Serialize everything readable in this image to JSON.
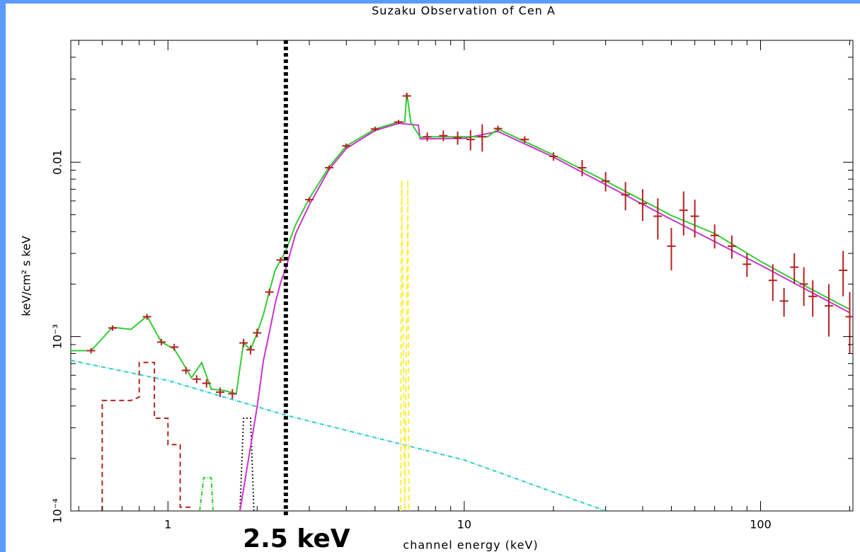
{
  "chart_data": {
    "type": "spectrum",
    "title": "Suzaku Observation of Cen A",
    "xlabel": "channel energy (keV)",
    "ylabel": "keV/cm² s keV",
    "xscale": "log",
    "yscale": "log",
    "xlim": [
      0.47,
      205
    ],
    "ylim": [
      0.0001,
      0.05
    ],
    "xticks": [
      1,
      10,
      100
    ],
    "xminorticks": [
      0.5,
      0.6,
      0.7,
      0.8,
      0.9,
      2,
      3,
      4,
      5,
      6,
      7,
      8,
      9,
      20,
      30,
      40,
      50,
      60,
      70,
      80,
      90,
      200
    ],
    "yticks": [
      {
        "value": 0.0001,
        "label": "10⁻⁴"
      },
      {
        "value": 0.001,
        "label": "10⁻³"
      },
      0.01
    ],
    "yminorticks": [
      0.0002,
      0.0003,
      0.0004,
      0.0005,
      0.0006,
      0.0007,
      0.0008,
      0.0009,
      0.002,
      0.003,
      0.004,
      0.005,
      0.006,
      0.007,
      0.008,
      0.009,
      0.02,
      0.03,
      0.04,
      0.05
    ],
    "series": [
      {
        "kind": "line",
        "color": "#33cccc",
        "dash": "6 2 1 2",
        "x": [
          0.47,
          1,
          2.5,
          10,
          30
        ],
        "values": [
          0.00073,
          0.00056,
          0.000354,
          0.000196,
          0.0001
        ]
      },
      {
        "kind": "line",
        "color": "#b22222",
        "dash": "7 5",
        "x": [
          0.6,
          0.6,
          0.75,
          0.8,
          0.8,
          0.9,
          0.9,
          1.0,
          1.0,
          1.1,
          1.1,
          1.2
        ],
        "values": [
          0.0001,
          0.00043,
          0.00043,
          0.00045,
          0.00071,
          0.00071,
          0.00034,
          0.00034,
          0.00024,
          0.00024,
          0.000105,
          0.000105
        ]
      },
      {
        "kind": "line",
        "color": "#222222",
        "dash": "2 3",
        "x": [
          1.75,
          1.8,
          1.9,
          1.95
        ],
        "values": [
          0.0001,
          0.00034,
          0.00034,
          0.0001
        ]
      },
      {
        "kind": "line",
        "color": "#33cc33",
        "dash": "6 2 1 2",
        "x": [
          1.28,
          1.32,
          1.4,
          1.42
        ],
        "values": [
          0.0001,
          0.000155,
          0.000155,
          0.0001
        ]
      },
      {
        "kind": "line",
        "color": "#ffee44",
        "dash": "8 4",
        "x": [
          6.1,
          6.15,
          6.3,
          6.45,
          6.5
        ],
        "values": [
          0.0001,
          0.0079,
          0.0001,
          0.0079,
          0.0001
        ]
      },
      {
        "kind": "line",
        "color": "#cc33cc",
        "dash": "",
        "x": [
          1.75,
          2.0,
          2.1,
          2.2,
          2.3,
          2.4,
          2.5,
          2.7,
          3,
          3.5,
          4,
          5,
          6,
          7,
          7.1,
          10,
          13,
          20,
          50,
          100,
          200
        ],
        "values": [
          0.0001,
          0.000396,
          0.00073,
          0.00106,
          0.00154,
          0.00204,
          0.00246,
          0.0039,
          0.0057,
          0.0091,
          0.012,
          0.0152,
          0.0167,
          0.0163,
          0.0136,
          0.0137,
          0.015,
          0.0107,
          0.0047,
          0.00257,
          0.00137
        ]
      },
      {
        "kind": "line",
        "color": "#33cc33",
        "dash": "",
        "x": [
          0.47,
          0.55,
          0.65,
          0.75,
          0.85,
          0.95,
          1.05,
          1.15,
          1.2,
          1.3,
          1.4,
          1.55,
          1.7,
          1.8,
          1.9,
          2.0,
          2.1,
          2.2,
          2.3,
          2.4,
          2.5,
          2.7,
          3,
          3.5,
          4,
          5,
          6,
          6.3,
          6.4,
          6.6,
          7.1,
          8,
          10,
          12,
          13,
          20,
          30,
          50,
          70,
          100,
          150,
          200
        ],
        "values": [
          0.00083,
          0.00083,
          0.00113,
          0.0011,
          0.00131,
          0.00093,
          0.00085,
          0.00066,
          0.00058,
          0.00071,
          0.0005,
          0.00049,
          0.00047,
          0.00092,
          0.00084,
          0.00105,
          0.00134,
          0.00182,
          0.0024,
          0.00275,
          0.0031,
          0.0044,
          0.0062,
          0.0094,
          0.0124,
          0.0155,
          0.017,
          0.017,
          0.025,
          0.017,
          0.0139,
          0.014,
          0.014,
          0.014,
          0.0155,
          0.011,
          0.0078,
          0.00495,
          0.0039,
          0.0027,
          0.00185,
          0.00143
        ]
      },
      {
        "kind": "points",
        "color": "#b22222",
        "x": [
          0.55,
          0.65,
          0.85,
          0.95,
          1.05,
          1.15,
          1.25,
          1.35,
          1.5,
          1.65,
          1.8,
          1.9,
          2.0,
          2.2,
          2.4,
          3.0,
          3.5,
          4.0,
          5.0,
          6.0,
          6.4,
          7.5,
          8.5,
          9.5,
          10.5,
          11.5,
          13,
          16,
          20,
          25,
          30,
          35,
          40,
          45,
          50,
          55,
          60,
          70,
          80,
          90,
          110,
          120,
          130,
          140,
          150,
          170,
          190,
          200
        ],
        "values": [
          0.00083,
          0.00112,
          0.0013,
          0.00093,
          0.00087,
          0.00064,
          0.00057,
          0.00054,
          0.00048,
          0.00047,
          0.00092,
          0.00084,
          0.00105,
          0.0018,
          0.00275,
          0.0061,
          0.0093,
          0.0124,
          0.0155,
          0.017,
          0.024,
          0.014,
          0.0142,
          0.0138,
          0.0135,
          0.014,
          0.0156,
          0.0135,
          0.0108,
          0.0093,
          0.0078,
          0.0065,
          0.0058,
          0.0049,
          0.0033,
          0.0053,
          0.0049,
          0.0038,
          0.0033,
          0.0026,
          0.0021,
          0.0016,
          0.0025,
          0.002,
          0.0017,
          0.0015,
          0.0024,
          0.0013
        ],
        "errors": [
          3e-05,
          4e-05,
          5e-05,
          4e-05,
          4e-05,
          3e-05,
          3e-05,
          3e-05,
          3e-05,
          3e-05,
          5e-05,
          5e-05,
          6e-05,
          8e-05,
          0.0001,
          0.0002,
          0.0003,
          0.0004,
          0.0005,
          0.0005,
          0.001,
          0.0008,
          0.001,
          0.0012,
          0.0018,
          0.0025,
          0.0006,
          0.0006,
          0.0006,
          0.001,
          0.001,
          0.0012,
          0.0012,
          0.0013,
          0.0009,
          0.0015,
          0.0012,
          0.0006,
          0.0005,
          0.0004,
          0.0005,
          0.0003,
          0.0005,
          0.0005,
          0.0004,
          0.0005,
          0.0007,
          0.0005
        ]
      }
    ],
    "annotations": [
      {
        "x": 2.5,
        "label": "2.5 keV"
      }
    ]
  }
}
